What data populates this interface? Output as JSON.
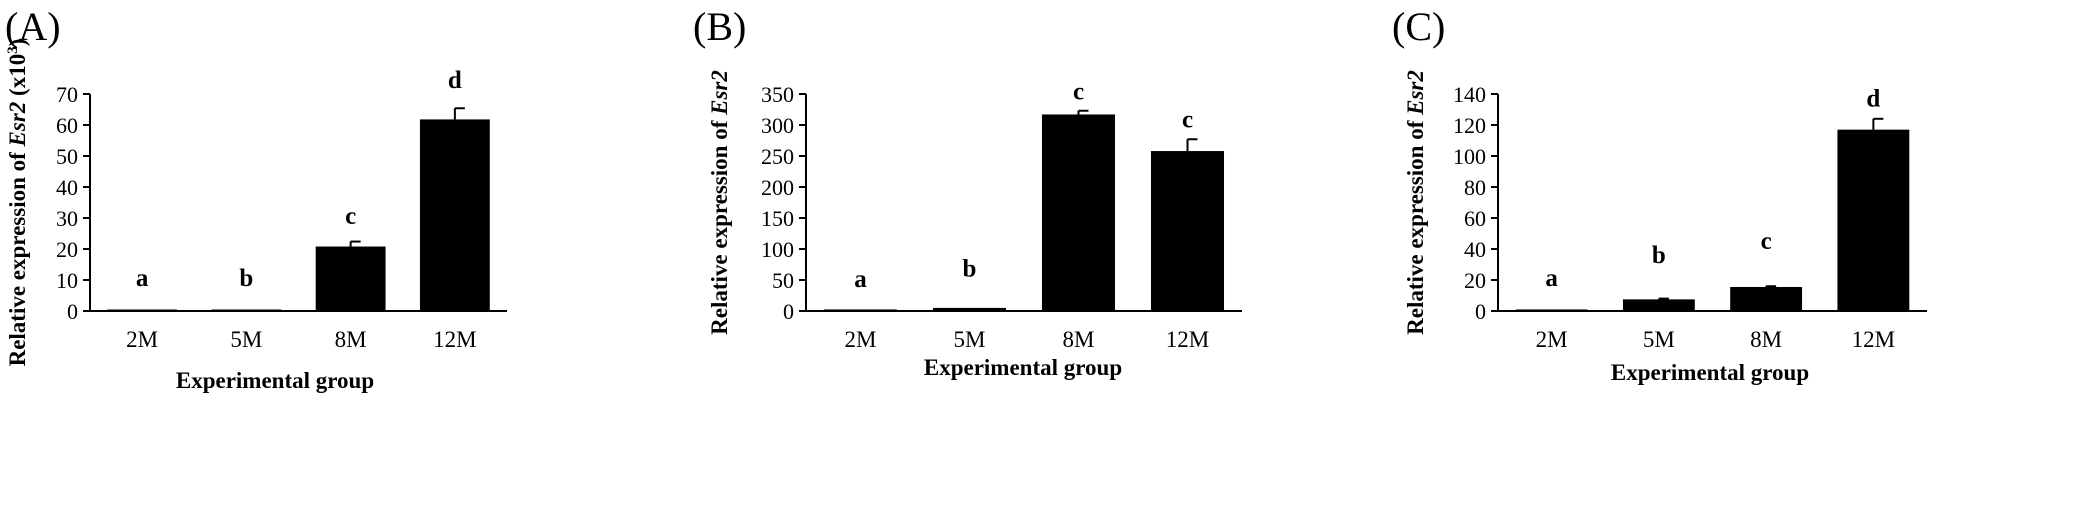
{
  "chart_data": [
    {
      "type": "bar",
      "panel": "(A)",
      "categories": [
        "2M",
        "5M",
        "8M",
        "12M"
      ],
      "values": [
        0.3,
        0.3,
        20.8,
        61.8
      ],
      "errors": [
        0.0,
        0.0,
        1.6,
        3.6
      ],
      "significance": [
        "a",
        "b",
        "c",
        "d"
      ],
      "sig_y": [
        8,
        8,
        28,
        72
      ],
      "xlabel": "Experimental group",
      "ylabel_parts": [
        "Relative expression of ",
        "Esr2",
        " (x10",
        "3",
        ")"
      ],
      "ylabel_italic": [
        false,
        true,
        false,
        false,
        false
      ],
      "ylabel_sup": [
        false,
        false,
        false,
        true,
        false
      ],
      "ylim": [
        0,
        70
      ],
      "yticks": [
        0,
        10,
        20,
        30,
        40,
        50,
        60,
        70
      ]
    },
    {
      "type": "bar",
      "panel": "(B)",
      "categories": [
        "2M",
        "5M",
        "8M",
        "12M"
      ],
      "values": [
        2.5,
        5,
        317,
        258
      ],
      "errors": [
        0,
        0,
        6,
        19
      ],
      "significance": [
        "a",
        "b",
        "c",
        "c"
      ],
      "sig_y": [
        39,
        56,
        341,
        296
      ],
      "xlabel": "Experimental group",
      "ylabel_parts": [
        "Relative expression of ",
        "Esr2"
      ],
      "ylabel_italic": [
        false,
        true
      ],
      "ylabel_sup": [
        false,
        false
      ],
      "ylim": [
        0,
        350
      ],
      "yticks": [
        0,
        50,
        100,
        150,
        200,
        250,
        300,
        350
      ]
    },
    {
      "type": "bar",
      "panel": "(C)",
      "categories": [
        "2M",
        "5M",
        "8M",
        "12M"
      ],
      "values": [
        1,
        7.5,
        15.5,
        117
      ],
      "errors": [
        0,
        0.5,
        0.5,
        7
      ],
      "significance": [
        "a",
        "b",
        "c",
        "d"
      ],
      "sig_y": [
        16,
        31,
        40,
        132
      ],
      "xlabel": "Experimental group",
      "ylabel_parts": [
        "Relative expression of ",
        "Esr2"
      ],
      "ylabel_italic": [
        false,
        true
      ],
      "ylabel_sup": [
        false,
        false
      ],
      "ylim": [
        0,
        140
      ],
      "yticks": [
        0,
        20,
        40,
        60,
        80,
        100,
        120,
        140
      ]
    }
  ]
}
